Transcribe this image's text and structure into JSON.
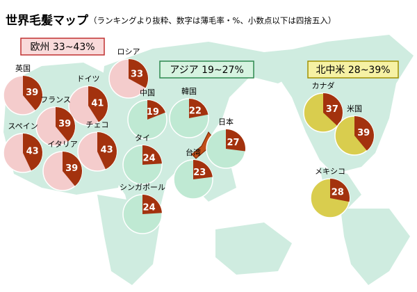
{
  "chart_data": {
    "type": "pie-map",
    "title": "世界毛髪マップ",
    "subtitle": "（ランキングより抜粋、数字は薄毛率・%、小数点以下は四捨五入）",
    "slice_color": "#a3320e",
    "groups": [
      {
        "label": "欧州 33~43%",
        "color": "#f4cccc",
        "pies": [
          {
            "name": "英国",
            "value": 39
          },
          {
            "name": "ロシア",
            "value": 33
          },
          {
            "name": "ドイツ",
            "value": 41
          },
          {
            "name": "フランス",
            "value": 39
          },
          {
            "name": "スペイン",
            "value": 43
          },
          {
            "name": "チェコ",
            "value": 43
          },
          {
            "name": "イタリア",
            "value": 39
          }
        ]
      },
      {
        "label": "アジア 19~27%",
        "color": "#bfe9d3",
        "pies": [
          {
            "name": "中国",
            "value": 19
          },
          {
            "name": "韓国",
            "value": 22
          },
          {
            "name": "日本",
            "value": 27
          },
          {
            "name": "タイ",
            "value": 24
          },
          {
            "name": "台湾",
            "value": 23
          },
          {
            "name": "シンガポール",
            "value": 24
          }
        ]
      },
      {
        "label": "北中米 28~39%",
        "color": "#d9cd4e",
        "pies": [
          {
            "name": "カナダ",
            "value": 37
          },
          {
            "name": "米国",
            "value": 39
          },
          {
            "name": "メキシコ",
            "value": 28
          }
        ]
      }
    ]
  }
}
